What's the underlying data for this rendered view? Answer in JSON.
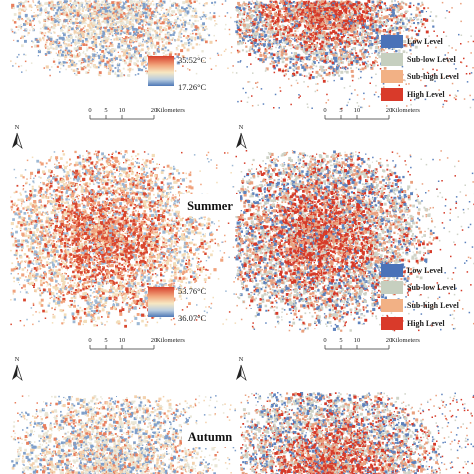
{
  "seasons": [
    {
      "label": "",
      "temp_max": "35.52°C",
      "temp_min": "17.26°C"
    },
    {
      "label": "Summer",
      "temp_max": "53.76°C",
      "temp_min": "36.07°C"
    },
    {
      "label": "Autumn",
      "temp_max": "",
      "temp_min": ""
    }
  ],
  "scale_bar": {
    "ticks": [
      "0",
      "5",
      "10",
      "20"
    ],
    "unit": "Kilometers"
  },
  "north_arrow": {
    "label": "N"
  },
  "level_legend": [
    {
      "label": "Low Level",
      "color": "#4a72b8"
    },
    {
      "label": "Sub-low Level",
      "color": "#c6cfbf"
    },
    {
      "label": "Sub-high Level",
      "color": "#f2b185"
    },
    {
      "label": "High Level",
      "color": "#d93a2a"
    }
  ],
  "gradient_colors": [
    "#d7402c",
    "#f2a37a",
    "#f7e7c2",
    "#b9cde0",
    "#4e78b6"
  ]
}
